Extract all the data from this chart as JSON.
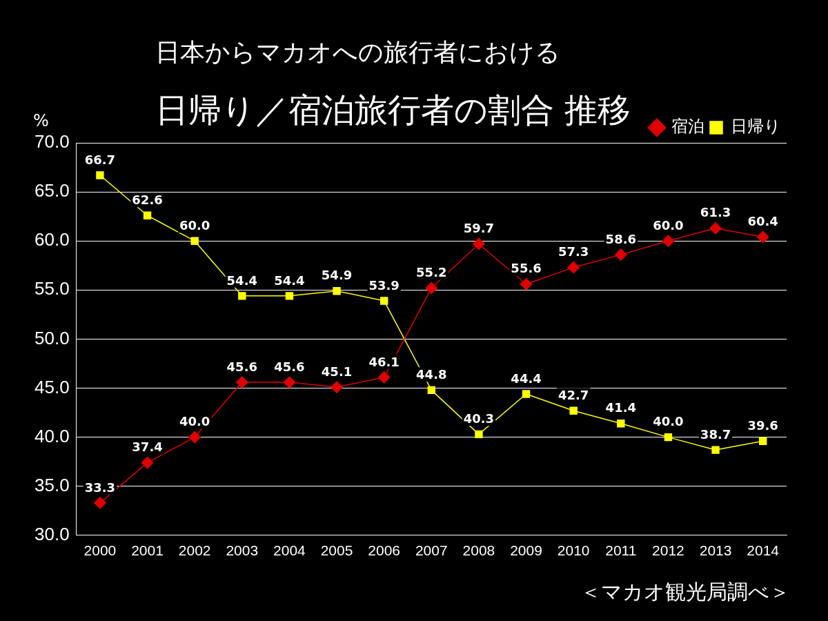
{
  "chart_data": {
    "type": "line",
    "subtitle": "日本からマカオへの旅行者における",
    "title": "日帰り／宿泊旅行者の割合 推移",
    "ylabel": "%",
    "categories": [
      "2000",
      "2001",
      "2002",
      "2003",
      "2004",
      "2005",
      "2006",
      "2007",
      "2008",
      "2009",
      "2010",
      "2011",
      "2012",
      "2013",
      "2014"
    ],
    "series": [
      {
        "name": "宿泊",
        "color": "#e00000",
        "marker": "diamond",
        "values": [
          33.3,
          37.4,
          40.0,
          45.6,
          45.6,
          45.1,
          46.1,
          55.2,
          59.7,
          55.6,
          57.3,
          58.6,
          60.0,
          61.3,
          60.4
        ],
        "value_labels": [
          "33.3",
          "37.4",
          "40.0",
          "45.6",
          "45.6",
          "45.1",
          "46.1",
          "55.2",
          "59.7",
          "55.6",
          "57.3",
          "58.6",
          "60.0",
          "61.3",
          "60.4"
        ]
      },
      {
        "name": "日帰り",
        "color": "#ffff00",
        "marker": "square",
        "values": [
          66.7,
          62.6,
          60.0,
          54.4,
          54.4,
          54.9,
          53.9,
          44.8,
          40.3,
          44.4,
          42.7,
          41.4,
          40.0,
          38.7,
          39.6
        ],
        "value_labels": [
          "66.7",
          "62.6",
          "60.0",
          "54.4",
          "54.4",
          "54.9",
          "53.9",
          "44.8",
          "40.3",
          "44.4",
          "42.7",
          "41.4",
          "40.0",
          "38.7",
          "39.6"
        ]
      }
    ],
    "ylim": [
      30,
      70
    ],
    "yticks": [
      {
        "value": 30,
        "label": "30.0"
      },
      {
        "value": 35,
        "label": "35.0"
      },
      {
        "value": 40,
        "label": "40.0"
      },
      {
        "value": 45,
        "label": "45.0"
      },
      {
        "value": 50,
        "label": "50.0"
      },
      {
        "value": 55,
        "label": "55.0"
      },
      {
        "value": 60,
        "label": "60.0"
      },
      {
        "value": 65,
        "label": "65.0"
      },
      {
        "value": 70,
        "label": "70.0"
      }
    ],
    "grid": "y",
    "legend": "top right",
    "line_style": "solid",
    "annotations": [
      "＜マカオ観光局調べ＞"
    ]
  }
}
